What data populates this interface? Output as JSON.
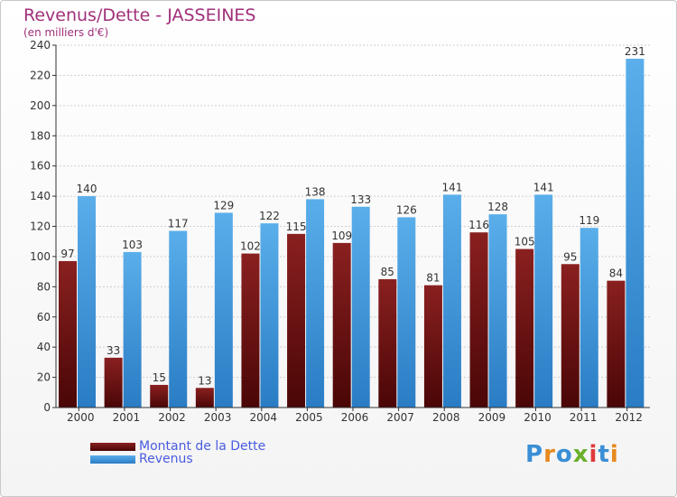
{
  "title": "Revenus/Dette - JASSEINES",
  "subtitle": "(en milliers d'€)",
  "colors": {
    "debt": "#7a1414",
    "revenue": "#3d9be0",
    "title": "#a0307a",
    "legend_text": "#4a5ce0"
  },
  "legend": {
    "debt_label": "Montant de la Dette",
    "revenue_label": "Revenus"
  },
  "logo": {
    "text": "Proxiti",
    "letter_colors": [
      "#3a8fd6",
      "#e8891d",
      "#3a8fd6",
      "#6ab02a",
      "#e03a3a",
      "#3a8fd6",
      "#e8891d"
    ]
  },
  "chart_data": {
    "type": "bar",
    "title": "Revenus/Dette - JASSEINES",
    "ylabel": "(en milliers d'€)",
    "xlabel": "",
    "ylim": [
      0,
      240
    ],
    "yticks": [
      0,
      20,
      40,
      60,
      80,
      100,
      120,
      140,
      160,
      180,
      200,
      220,
      240
    ],
    "grid": true,
    "legend_position": "bottom-left",
    "categories": [
      "2000",
      "2001",
      "2002",
      "2003",
      "2004",
      "2005",
      "2006",
      "2007",
      "2008",
      "2009",
      "2010",
      "2011",
      "2012"
    ],
    "series": [
      {
        "name": "Montant de la Dette",
        "values": [
          97,
          33,
          15,
          13,
          102,
          115,
          109,
          85,
          81,
          116,
          105,
          95,
          84
        ]
      },
      {
        "name": "Revenus",
        "values": [
          140,
          103,
          117,
          129,
          122,
          138,
          133,
          126,
          141,
          128,
          141,
          119,
          231
        ]
      }
    ]
  }
}
